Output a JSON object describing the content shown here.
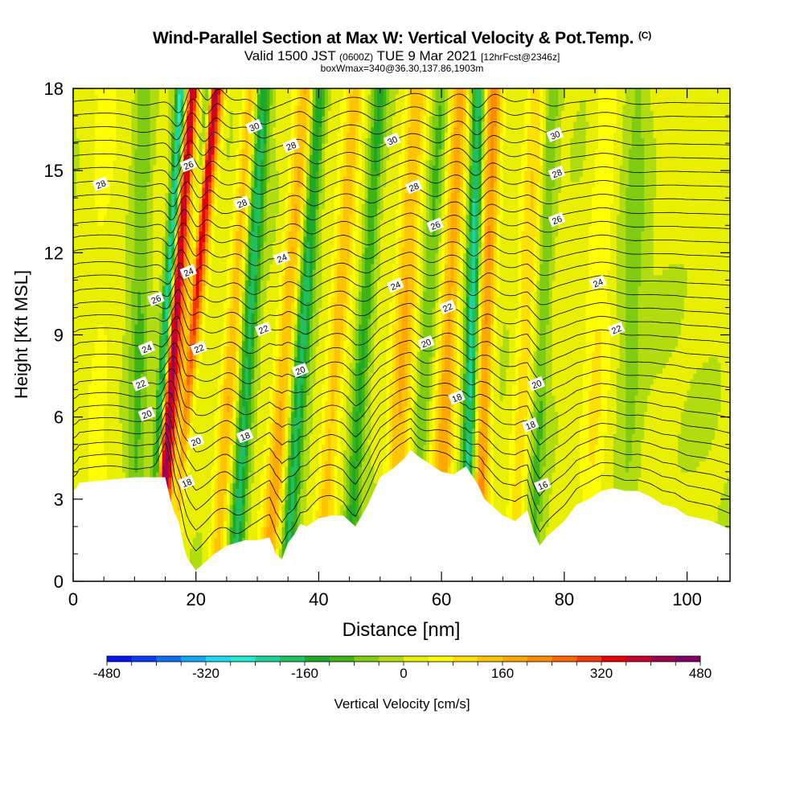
{
  "header": {
    "title": "Wind-Parallel Section at Max W: Vertical Velocity & Pot.Temp.",
    "title_mark": "(C)",
    "valid_prefix": "Valid 1500 JST",
    "valid_utc": "(0600Z)",
    "valid_date": "TUE 9 Mar 2021",
    "forecast": "[12hrFcst@2346z]",
    "box_info": "boxWmax=340@36.30,137.86,1903m"
  },
  "chart_data": {
    "type": "heatmap",
    "xlabel": "Distance [nm]",
    "ylabel": "Height [Kft MSL]",
    "xlim": [
      0,
      107
    ],
    "ylim": [
      0,
      18
    ],
    "x_ticks": [
      0,
      20,
      40,
      60,
      80,
      100
    ],
    "y_ticks": [
      0,
      3,
      6,
      9,
      12,
      15,
      18
    ],
    "colorbar": {
      "label": "Vertical Velocity [cm/s]",
      "min": -480,
      "max": 480,
      "step": 40,
      "tick_values": [
        -480,
        -320,
        -160,
        0,
        160,
        320,
        480
      ],
      "colors": [
        "#0a14f0",
        "#0a3cf5",
        "#1070f0",
        "#15a8f0",
        "#20d8f5",
        "#25ecd0",
        "#1ed39a",
        "#20c060",
        "#1ea82a",
        "#40b414",
        "#80cc12",
        "#b0dc10",
        "#e8f000",
        "#ffff00",
        "#ffe000",
        "#ffc400",
        "#ffa800",
        "#ff8c00",
        "#ff6600",
        "#f23a00",
        "#e60000",
        "#c80030",
        "#a00050",
        "#820066"
      ]
    },
    "terrain": {
      "distance_nm": [
        0,
        0.5,
        1,
        10,
        15,
        15.8,
        16.5,
        17.2,
        18,
        18.5,
        19,
        20,
        21,
        22,
        23,
        25,
        28,
        30,
        32,
        33,
        34,
        35,
        36,
        37,
        38,
        40,
        42,
        44,
        46,
        48,
        50,
        52,
        54,
        55,
        56,
        58,
        60,
        62,
        64,
        66,
        67,
        68,
        70,
        72,
        74,
        75,
        76,
        77,
        78,
        80,
        82,
        84,
        86,
        88,
        90,
        92,
        94,
        96,
        98,
        100,
        102,
        104,
        106,
        107
      ],
      "height_kft": [
        3.3,
        3.4,
        3.6,
        3.8,
        3.8,
        3.0,
        2.5,
        2.2,
        1.3,
        0.9,
        0.7,
        0.4,
        0.6,
        0.8,
        1.0,
        1.3,
        1.5,
        1.5,
        1.6,
        1.0,
        0.8,
        1.4,
        1.7,
        2.1,
        2.0,
        2.3,
        2.4,
        2.4,
        2.0,
        2.8,
        3.8,
        4.1,
        4.5,
        4.8,
        4.6,
        4.3,
        4.0,
        3.9,
        4.2,
        3.5,
        3.0,
        2.8,
        2.4,
        2.2,
        2.6,
        1.8,
        1.3,
        1.6,
        1.8,
        2.2,
        2.8,
        3.0,
        3.3,
        3.4,
        3.3,
        3.3,
        3.1,
        2.8,
        2.7,
        2.4,
        2.3,
        2.2,
        2.0,
        1.9
      ]
    },
    "velocity_bands": [
      {
        "x_bottom": 15.0,
        "x_top": 23.0,
        "w": 450,
        "half_width_nm": 1.5
      },
      {
        "x_bottom": 13.5,
        "x_top": 19.5,
        "w": 380,
        "half_width_nm": 0.9
      },
      {
        "x_bottom": 15.5,
        "x_top": 22.0,
        "w": -330,
        "half_width_nm": 0.8
      },
      {
        "x_bottom": 13.0,
        "x_top": 17.5,
        "w": -260,
        "half_width_nm": 0.8
      },
      {
        "x_bottom": 23.5,
        "x_top": 29.0,
        "w": 140,
        "half_width_nm": 1.4
      },
      {
        "x_bottom": 26.5,
        "x_top": 31.0,
        "w": -190,
        "half_width_nm": 1.3
      },
      {
        "x_bottom": 32.0,
        "x_top": 38.0,
        "w": 160,
        "half_width_nm": 1.6
      },
      {
        "x_bottom": 35.0,
        "x_top": 40.0,
        "w": -190,
        "half_width_nm": 1.3
      },
      {
        "x_bottom": 40.5,
        "x_top": 46.0,
        "w": 130,
        "half_width_nm": 1.6
      },
      {
        "x_bottom": 45.0,
        "x_top": 50.0,
        "w": -130,
        "half_width_nm": 1.2
      },
      {
        "x_bottom": 52.0,
        "x_top": 56.0,
        "w": 150,
        "half_width_nm": 1.8
      },
      {
        "x_bottom": 55.5,
        "x_top": 60.0,
        "w": -90,
        "half_width_nm": 1.3
      },
      {
        "x_bottom": 59.5,
        "x_top": 63.0,
        "w": 170,
        "half_width_nm": 1.6
      },
      {
        "x_bottom": 64.0,
        "x_top": 66.0,
        "w": -230,
        "half_width_nm": 1.1
      },
      {
        "x_bottom": 66.0,
        "x_top": 68.5,
        "w": 200,
        "half_width_nm": 1.4
      },
      {
        "x_bottom": 72.0,
        "x_top": 75.5,
        "w": 100,
        "half_width_nm": 1.6
      },
      {
        "x_bottom": 75.0,
        "x_top": 78.0,
        "w": -90,
        "half_width_nm": 1.2
      },
      {
        "x_bottom": 84.0,
        "x_top": 87.0,
        "w": 70,
        "half_width_nm": 2.0
      },
      {
        "x_bottom": 90.0,
        "x_top": 92.0,
        "w": -60,
        "half_width_nm": 2.0
      },
      {
        "x_bottom": 4.0,
        "x_top": 5.0,
        "w": 40,
        "half_width_nm": 2.5
      },
      {
        "x_bottom": 10.0,
        "x_top": 11.5,
        "w": -90,
        "half_width_nm": 1.5
      }
    ],
    "isentropes_kft": [
      3.5,
      4.0,
      4.5,
      5.0,
      5.5,
      6.0,
      6.5,
      7.0,
      7.5,
      8.0,
      8.5,
      9.0,
      9.5,
      10.0,
      10.5,
      11.0,
      11.5,
      12.0,
      12.5,
      13.0,
      13.5,
      14.0,
      14.5,
      15.0,
      15.5,
      16.0,
      16.5,
      17.0,
      17.5
    ],
    "isentrope_labels": [
      {
        "text": "30",
        "x": 29.5,
        "y": 16.6
      },
      {
        "text": "28",
        "x": 35.5,
        "y": 15.9
      },
      {
        "text": "30",
        "x": 52.0,
        "y": 16.1
      },
      {
        "text": "30",
        "x": 78.5,
        "y": 16.3
      },
      {
        "text": "28",
        "x": 4.5,
        "y": 14.5
      },
      {
        "text": "26",
        "x": 18.8,
        "y": 15.2
      },
      {
        "text": "28",
        "x": 55.5,
        "y": 14.4
      },
      {
        "text": "28",
        "x": 78.8,
        "y": 14.9
      },
      {
        "text": "28",
        "x": 27.5,
        "y": 13.8
      },
      {
        "text": "26",
        "x": 59.0,
        "y": 13.0
      },
      {
        "text": "26",
        "x": 78.8,
        "y": 13.2
      },
      {
        "text": "24",
        "x": 34.0,
        "y": 11.8
      },
      {
        "text": "24",
        "x": 18.8,
        "y": 11.3
      },
      {
        "text": "24",
        "x": 52.5,
        "y": 10.8
      },
      {
        "text": "24",
        "x": 85.5,
        "y": 10.9
      },
      {
        "text": "26",
        "x": 13.5,
        "y": 10.3
      },
      {
        "text": "22",
        "x": 61.0,
        "y": 10.0
      },
      {
        "text": "22",
        "x": 31.0,
        "y": 9.2
      },
      {
        "text": "22",
        "x": 88.5,
        "y": 9.2
      },
      {
        "text": "24",
        "x": 12.0,
        "y": 8.5
      },
      {
        "text": "22",
        "x": 20.5,
        "y": 8.5
      },
      {
        "text": "20",
        "x": 57.5,
        "y": 8.7
      },
      {
        "text": "20",
        "x": 37.0,
        "y": 7.7
      },
      {
        "text": "22",
        "x": 11.0,
        "y": 7.2
      },
      {
        "text": "20",
        "x": 75.5,
        "y": 7.2
      },
      {
        "text": "18",
        "x": 62.5,
        "y": 6.7
      },
      {
        "text": "20",
        "x": 12.0,
        "y": 6.1
      },
      {
        "text": "18",
        "x": 74.5,
        "y": 5.7
      },
      {
        "text": "18",
        "x": 28.0,
        "y": 5.3
      },
      {
        "text": "20",
        "x": 20.0,
        "y": 5.1
      },
      {
        "text": "18",
        "x": 18.5,
        "y": 3.6
      },
      {
        "text": "16",
        "x": 76.5,
        "y": 3.5
      }
    ]
  }
}
